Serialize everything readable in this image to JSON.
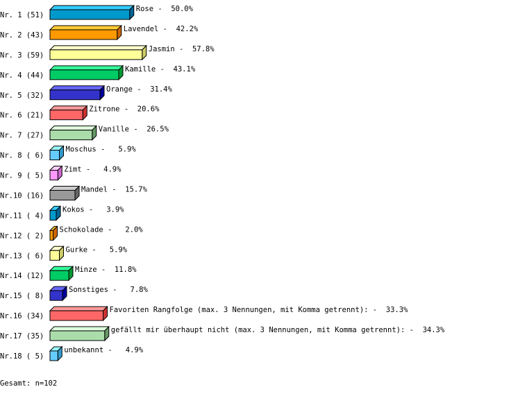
{
  "chart_data": {
    "type": "bar",
    "orientation": "horizontal",
    "style": "3d",
    "rows": [
      {
        "rank": "Nr. 1",
        "count": 51,
        "label": "Rose",
        "percent": 50.0
      },
      {
        "rank": "Nr. 2",
        "count": 43,
        "label": "Lavendel",
        "percent": 42.2
      },
      {
        "rank": "Nr. 3",
        "count": 59,
        "label": "Jasmin",
        "percent": 57.8
      },
      {
        "rank": "Nr. 4",
        "count": 44,
        "label": "Kamille",
        "percent": 43.1
      },
      {
        "rank": "Nr. 5",
        "count": 32,
        "label": "Orange",
        "percent": 31.4
      },
      {
        "rank": "Nr. 6",
        "count": 21,
        "label": "Zitrone",
        "percent": 20.6
      },
      {
        "rank": "Nr. 7",
        "count": 27,
        "label": "Vanille",
        "percent": 26.5
      },
      {
        "rank": "Nr. 8",
        "count": 6,
        "label": "Moschus",
        "percent": 5.9
      },
      {
        "rank": "Nr. 9",
        "count": 5,
        "label": "Zimt",
        "percent": 4.9
      },
      {
        "rank": "Nr.10",
        "count": 16,
        "label": "Mandel",
        "percent": 15.7
      },
      {
        "rank": "Nr.11",
        "count": 4,
        "label": "Kokos",
        "percent": 3.9
      },
      {
        "rank": "Nr.12",
        "count": 2,
        "label": "Schokolade",
        "percent": 2.0
      },
      {
        "rank": "Nr.13",
        "count": 6,
        "label": "Gurke",
        "percent": 5.9
      },
      {
        "rank": "Nr.14",
        "count": 12,
        "label": "Minze",
        "percent": 11.8
      },
      {
        "rank": "Nr.15",
        "count": 8,
        "label": "Sonstiges",
        "percent": 7.8
      },
      {
        "rank": "Nr.16",
        "count": 34,
        "label": "Favoriten Rangfolge (max. 3 Nennungen, mit Komma getrennt):",
        "percent": 33.3
      },
      {
        "rank": "Nr.17",
        "count": 35,
        "label": "gefällt mir überhaupt nicht (max. 3 Nennungen, mit Komma getrennt):",
        "percent": 34.3
      },
      {
        "rank": "Nr.18",
        "count": 5,
        "label": "unbekannt",
        "percent": 4.9
      }
    ],
    "palette": [
      {
        "front": "#0099cc",
        "top": "#33ccff",
        "side": "#006699"
      },
      {
        "front": "#ff9900",
        "top": "#ffcc33",
        "side": "#cc6600"
      },
      {
        "front": "#ffff99",
        "top": "#ffffcc",
        "side": "#cccc66"
      },
      {
        "front": "#00cc66",
        "top": "#33ff99",
        "side": "#009933"
      },
      {
        "front": "#3333cc",
        "top": "#6666ff",
        "side": "#000099"
      },
      {
        "front": "#ff6666",
        "top": "#ff9999",
        "side": "#cc3333"
      },
      {
        "front": "#aaddaa",
        "top": "#ddffdd",
        "side": "#669966"
      },
      {
        "front": "#66ccff",
        "top": "#99ffff",
        "side": "#3399cc"
      },
      {
        "front": "#ff99ff",
        "top": "#ffccff",
        "side": "#cc66cc"
      },
      {
        "front": "#999999",
        "top": "#cccccc",
        "side": "#666666"
      }
    ],
    "total_label": "Gesamt: n=102"
  }
}
